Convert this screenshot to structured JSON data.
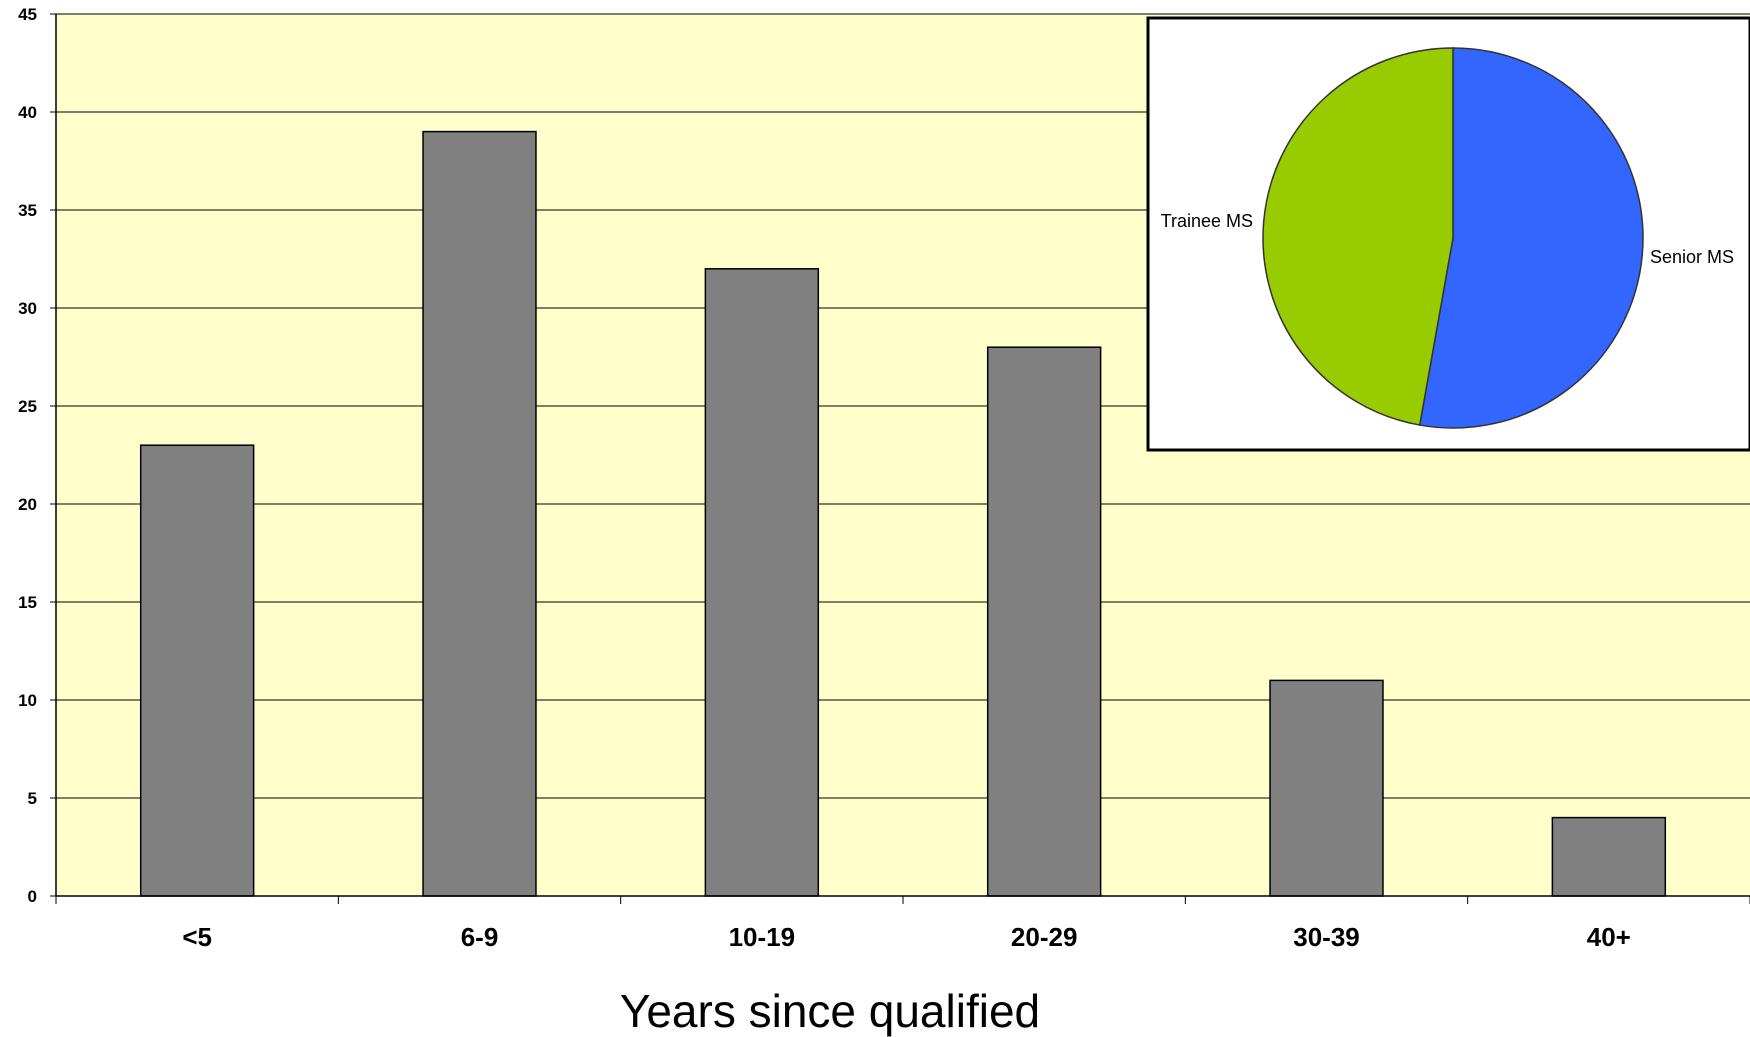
{
  "chart_data": [
    {
      "type": "bar",
      "categories": [
        "<5",
        "6-9",
        "10-19",
        "20-29",
        "30-39",
        "40+"
      ],
      "values": [
        23,
        39,
        32,
        28,
        11,
        4
      ],
      "title": "",
      "xlabel": "Years since qualified",
      "ylabel": "",
      "ylim": [
        0,
        45
      ],
      "yticks": [
        0,
        5,
        10,
        15,
        20,
        25,
        30,
        35,
        40,
        45
      ],
      "grid": true,
      "colors": {
        "plot_background": "#FFFFCC",
        "bar": "#808080",
        "gridline": "#000000"
      }
    },
    {
      "type": "pie",
      "labels": [
        "Senior MS",
        "Trainee MS"
      ],
      "values": [
        52.8,
        47.2
      ],
      "colors": [
        "#3366FF",
        "#99CC00"
      ],
      "legend": "inset-top-right"
    }
  ]
}
